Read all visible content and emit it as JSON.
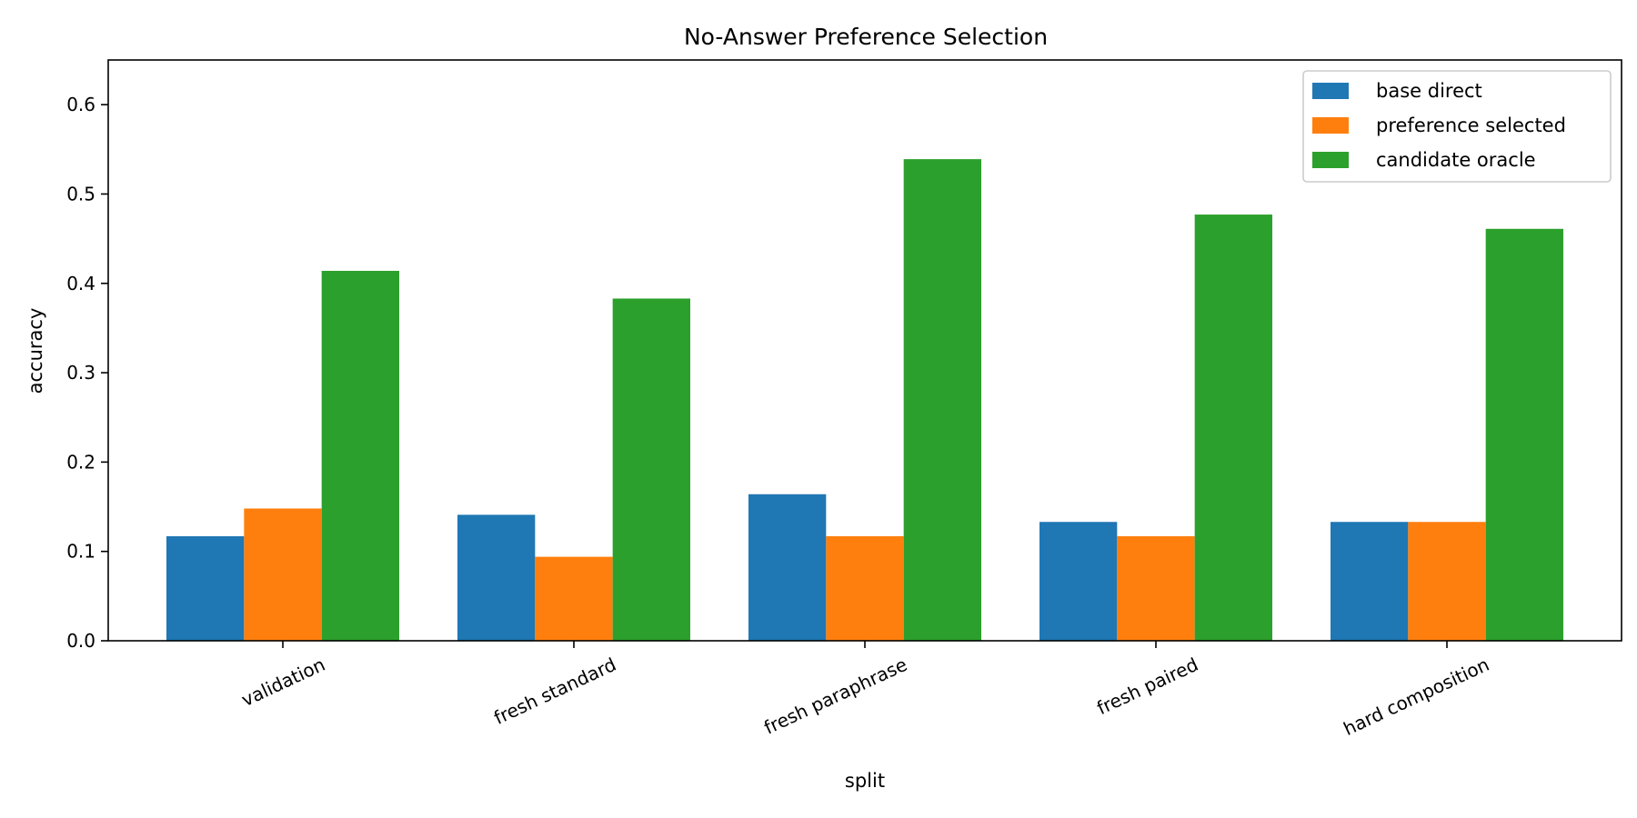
{
  "chart_data": {
    "type": "bar",
    "title": "No-Answer Preference Selection",
    "xlabel": "split",
    "ylabel": "accuracy",
    "categories": [
      "validation",
      "fresh standard",
      "fresh paraphrase",
      "fresh paired",
      "hard composition"
    ],
    "series": [
      {
        "name": "base direct",
        "color": "#1f77b4",
        "values": [
          0.117,
          0.141,
          0.164,
          0.133,
          0.133
        ]
      },
      {
        "name": "preference selected",
        "color": "#ff7f0e",
        "values": [
          0.148,
          0.094,
          0.117,
          0.117,
          0.133
        ]
      },
      {
        "name": "candidate oracle",
        "color": "#2ca02c",
        "values": [
          0.414,
          0.383,
          0.539,
          0.477,
          0.461
        ]
      }
    ],
    "ylim": [
      0,
      0.65
    ],
    "yticks": [
      0.0,
      0.1,
      0.2,
      0.3,
      0.4,
      0.5,
      0.6
    ],
    "ytick_labels": [
      "0.0",
      "0.1",
      "0.2",
      "0.3",
      "0.4",
      "0.5",
      "0.6"
    ],
    "grid": false,
    "legend_position": "top-right"
  }
}
